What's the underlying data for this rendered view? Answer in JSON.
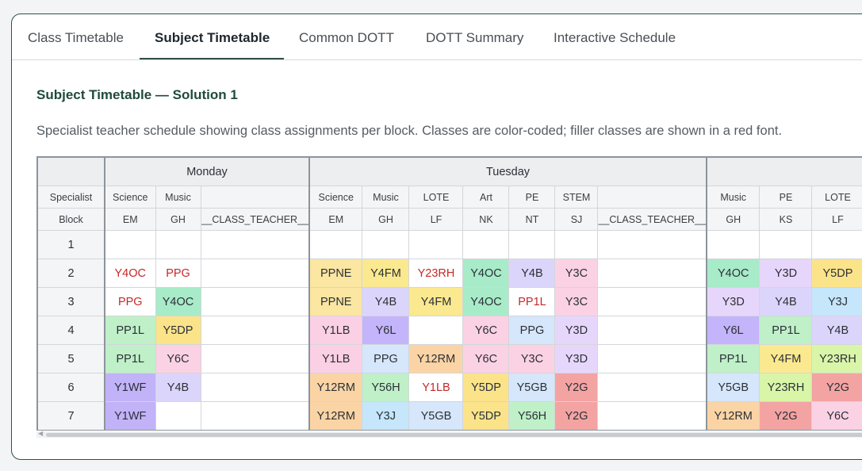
{
  "tabs": [
    {
      "label": "Class Timetable",
      "active": false
    },
    {
      "label": "Subject Timetable",
      "active": true
    },
    {
      "label": "Common DOTT",
      "active": false
    },
    {
      "label": "DOTT Summary",
      "active": false
    },
    {
      "label": "Interactive Schedule",
      "active": false
    }
  ],
  "section": {
    "title": "Subject Timetable — Solution 1",
    "description": "Specialist teacher schedule showing class assignments per block. Classes are color-coded; filler classes are shown in a red font."
  },
  "table": {
    "header_specialist": "Specialist",
    "header_block": "Block",
    "days": [
      {
        "name": "Monday",
        "columns": [
          {
            "subject": "Science",
            "teacher": "EM"
          },
          {
            "subject": "Music",
            "teacher": "GH"
          },
          {
            "subject": "",
            "teacher": "__CLASS_TEACHER__"
          }
        ]
      },
      {
        "name": "Tuesday",
        "columns": [
          {
            "subject": "Science",
            "teacher": "EM"
          },
          {
            "subject": "Music",
            "teacher": "GH"
          },
          {
            "subject": "LOTE",
            "teacher": "LF"
          },
          {
            "subject": "Art",
            "teacher": "NK"
          },
          {
            "subject": "PE",
            "teacher": "NT"
          },
          {
            "subject": "STEM",
            "teacher": "SJ"
          },
          {
            "subject": "",
            "teacher": "__CLASS_TEACHER__"
          }
        ]
      },
      {
        "name": "",
        "columns": [
          {
            "subject": "Music",
            "teacher": "GH"
          },
          {
            "subject": "PE",
            "teacher": "KS"
          },
          {
            "subject": "LOTE",
            "teacher": "LF"
          }
        ]
      }
    ],
    "blocks": [
      {
        "block": "1",
        "cells": [
          [
            null,
            null,
            null
          ],
          [
            null,
            null,
            null,
            null,
            null,
            null,
            null
          ],
          [
            null,
            null,
            null
          ]
        ]
      },
      {
        "block": "2",
        "cells": [
          [
            {
              "c": "Y4OC",
              "f": true
            },
            {
              "c": "PPG",
              "f": true
            },
            null
          ],
          [
            {
              "c": "PPNE"
            },
            {
              "c": "Y4FM"
            },
            {
              "c": "Y23RH",
              "f": true
            },
            {
              "c": "Y4OC"
            },
            {
              "c": "Y4B"
            },
            {
              "c": "Y3C"
            },
            null
          ],
          [
            {
              "c": "Y4OC"
            },
            {
              "c": "Y3D"
            },
            {
              "c": "Y5DP"
            }
          ]
        ]
      },
      {
        "block": "3",
        "cells": [
          [
            {
              "c": "PPG",
              "f": true
            },
            {
              "c": "Y4OC"
            },
            null
          ],
          [
            {
              "c": "PPNE"
            },
            {
              "c": "Y4B"
            },
            {
              "c": "Y4FM"
            },
            {
              "c": "Y4OC"
            },
            {
              "c": "PP1L",
              "f": true
            },
            {
              "c": "Y3C"
            },
            null
          ],
          [
            {
              "c": "Y3D"
            },
            {
              "c": "Y4B"
            },
            {
              "c": "Y3J"
            }
          ]
        ]
      },
      {
        "block": "4",
        "cells": [
          [
            {
              "c": "PP1L"
            },
            {
              "c": "Y5DP"
            },
            null
          ],
          [
            {
              "c": "Y1LB"
            },
            {
              "c": "Y6L"
            },
            null,
            {
              "c": "Y6C"
            },
            {
              "c": "PPG"
            },
            {
              "c": "Y3D"
            },
            null
          ],
          [
            {
              "c": "Y6L"
            },
            {
              "c": "PP1L"
            },
            {
              "c": "Y4B"
            }
          ]
        ]
      },
      {
        "block": "5",
        "cells": [
          [
            {
              "c": "PP1L"
            },
            {
              "c": "Y6C"
            },
            null
          ],
          [
            {
              "c": "Y1LB"
            },
            {
              "c": "PPG"
            },
            {
              "c": "Y12RM"
            },
            {
              "c": "Y6C"
            },
            {
              "c": "Y3C"
            },
            {
              "c": "Y3D"
            },
            null
          ],
          [
            {
              "c": "PP1L"
            },
            {
              "c": "Y4FM"
            },
            {
              "c": "Y23RH"
            }
          ]
        ]
      },
      {
        "block": "6",
        "cells": [
          [
            {
              "c": "Y1WF"
            },
            {
              "c": "Y4B"
            },
            null
          ],
          [
            {
              "c": "Y12RM"
            },
            {
              "c": "Y56H"
            },
            {
              "c": "Y1LB",
              "f": true
            },
            {
              "c": "Y5DP"
            },
            {
              "c": "Y5GB"
            },
            {
              "c": "Y2G"
            },
            null
          ],
          [
            {
              "c": "Y5GB"
            },
            {
              "c": "Y23RH"
            },
            {
              "c": "Y2G"
            }
          ]
        ]
      },
      {
        "block": "7",
        "cells": [
          [
            {
              "c": "Y1WF"
            },
            null,
            null
          ],
          [
            {
              "c": "Y12RM"
            },
            {
              "c": "Y3J"
            },
            {
              "c": "Y5GB"
            },
            {
              "c": "Y5DP"
            },
            {
              "c": "Y56H"
            },
            {
              "c": "Y2G"
            },
            null
          ],
          [
            {
              "c": "Y12RM"
            },
            {
              "c": "Y2G"
            },
            {
              "c": "Y6C"
            }
          ]
        ]
      }
    ]
  },
  "class_colors": {
    "Y4OC": "#a8ebc9",
    "PPG": "#d6e6fb",
    "PPNE": "#fbe6a2",
    "Y4FM": "#fbe98f",
    "Y23RH": "#d9f5a8",
    "Y4B": "#dcd5fb",
    "Y3C": "#fbd2e3",
    "Y3D": "#e7d6fb",
    "Y5DP": "#fbe38a",
    "PP1L": "#bff0c8",
    "Y3J": "#c5e6fb",
    "Y1LB": "#fbd0e4",
    "Y6L": "#c4b4fb",
    "Y6C": "#fbd1e4",
    "Y12RM": "#fbd4a5",
    "Y1WF": "#c2b2f8",
    "Y56H": "#bff0c8",
    "Y5GB": "#d6e6fb",
    "Y2G": "#f4a3a3"
  },
  "filler_color": "#c62828"
}
